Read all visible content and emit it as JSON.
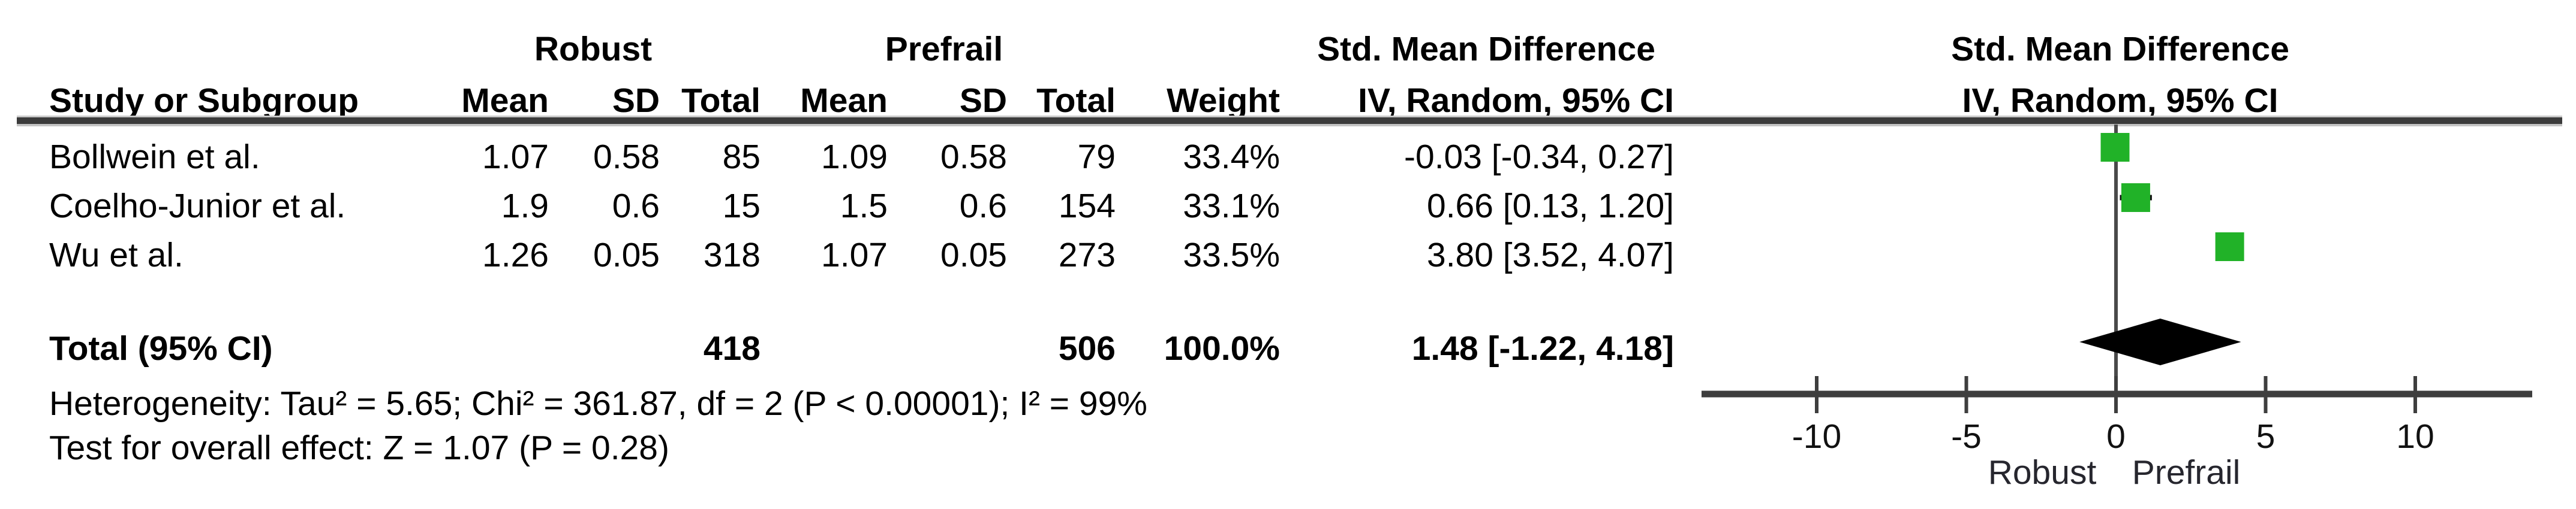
{
  "table": {
    "group_headers": {
      "robust": "Robust",
      "prefrail": "Prefrail",
      "smd": "Std. Mean Difference",
      "smd_plot": "Std. Mean Difference"
    },
    "col_headers": {
      "study": "Study or Subgroup",
      "mean": "Mean",
      "sd": "SD",
      "total": "Total",
      "weight": "Weight",
      "iv": "IV, Random, 95% CI",
      "iv_plot": "IV, Random, 95% CI"
    },
    "rows": [
      {
        "study": "Bollwein et al.",
        "r_mean": "1.07",
        "r_sd": "0.58",
        "r_total": "85",
        "p_mean": "1.09",
        "p_sd": "0.58",
        "p_total": "79",
        "weight": "33.4%",
        "smd": "-0.03 [-0.34, 0.27]"
      },
      {
        "study": "Coelho-Junior et al.",
        "r_mean": "1.9",
        "r_sd": "0.6",
        "r_total": "15",
        "p_mean": "1.5",
        "p_sd": "0.6",
        "p_total": "154",
        "weight": "33.1%",
        "smd": "0.66 [0.13, 1.20]"
      },
      {
        "study": "Wu et al.",
        "r_mean": "1.26",
        "r_sd": "0.05",
        "r_total": "318",
        "p_mean": "1.07",
        "p_sd": "0.05",
        "p_total": "273",
        "weight": "33.5%",
        "smd": "3.80 [3.52, 4.07]"
      }
    ],
    "total_row": {
      "label": "Total (95% CI)",
      "r_total": "418",
      "p_total": "506",
      "weight": "100.0%",
      "smd": "1.48 [-1.22, 4.18]"
    },
    "footnotes": {
      "heterogeneity": "Heterogeneity: Tau² = 5.65; Chi² = 361.87, df = 2 (P < 0.00001); I² = 99%",
      "overall_effect": "Test for overall effect: Z = 1.07 (P = 0.28)"
    }
  },
  "chart_data": {
    "type": "scatter",
    "subtype": "forest-plot",
    "effect_measure": "Std. Mean Difference",
    "method": "IV, Random, 95% CI",
    "studies": [
      {
        "name": "Bollwein et al.",
        "smd": -0.03,
        "ci_low": -0.34,
        "ci_high": 0.27,
        "weight_pct": 33.4
      },
      {
        "name": "Coelho-Junior et al.",
        "smd": 0.66,
        "ci_low": 0.13,
        "ci_high": 1.2,
        "weight_pct": 33.1
      },
      {
        "name": "Wu et al.",
        "smd": 3.8,
        "ci_low": 3.52,
        "ci_high": 4.07,
        "weight_pct": 33.5
      }
    ],
    "total": {
      "label": "Total (95% CI)",
      "smd": 1.48,
      "ci_low": -1.22,
      "ci_high": 4.18,
      "weight_pct": 100.0
    },
    "axis": {
      "ticks": [
        -10,
        -5,
        0,
        5,
        10
      ],
      "tick_labels": [
        "-10",
        "-5",
        "0",
        "5",
        "10"
      ],
      "min": -13.8,
      "max": 13.9,
      "grid": false
    },
    "axis_labels": {
      "left": "Robust",
      "right": "Prefrail"
    },
    "colors": {
      "marker": "#21b228",
      "diamond": "#000000",
      "line": "#3e3e3e",
      "zero_line": "#4a4a4a",
      "whisker": "#111111"
    }
  }
}
